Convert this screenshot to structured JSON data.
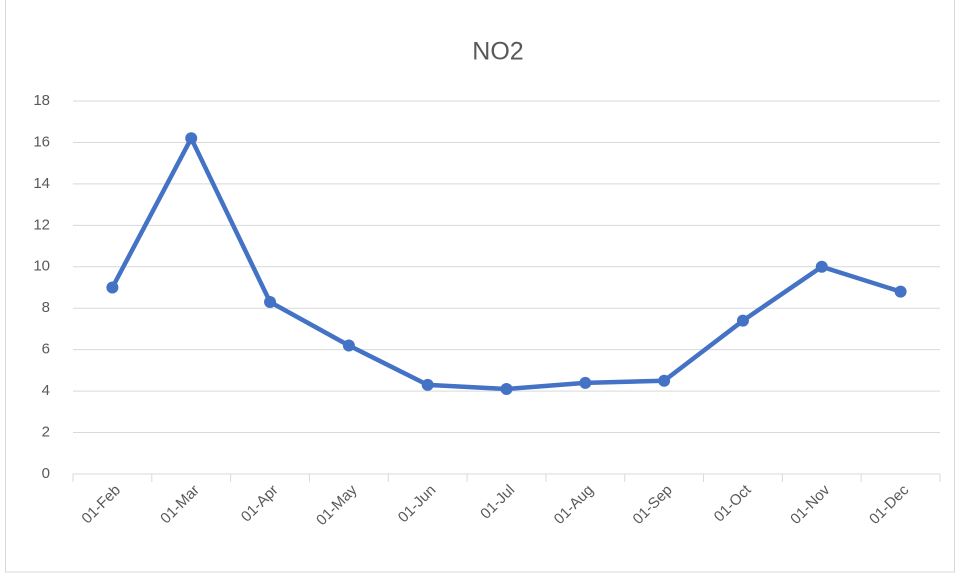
{
  "chart_data": {
    "type": "line",
    "title": "NO2",
    "categories": [
      "01-Feb",
      "01-Mar",
      "01-Apr",
      "01-May",
      "01-Jun",
      "01-Jul",
      "01-Aug",
      "01-Sep",
      "01-Oct",
      "01-Nov",
      "01-Dec"
    ],
    "series": [
      {
        "name": "NO2",
        "color": "#4472c4",
        "values": [
          9,
          16.2,
          8.3,
          6.2,
          4.3,
          4.1,
          4.4,
          4.5,
          7.4,
          10,
          8.8
        ]
      }
    ],
    "ylim": [
      0,
      18
    ],
    "yticks": [
      0,
      2,
      4,
      6,
      8,
      10,
      12,
      14,
      16,
      18
    ],
    "grid": true
  }
}
